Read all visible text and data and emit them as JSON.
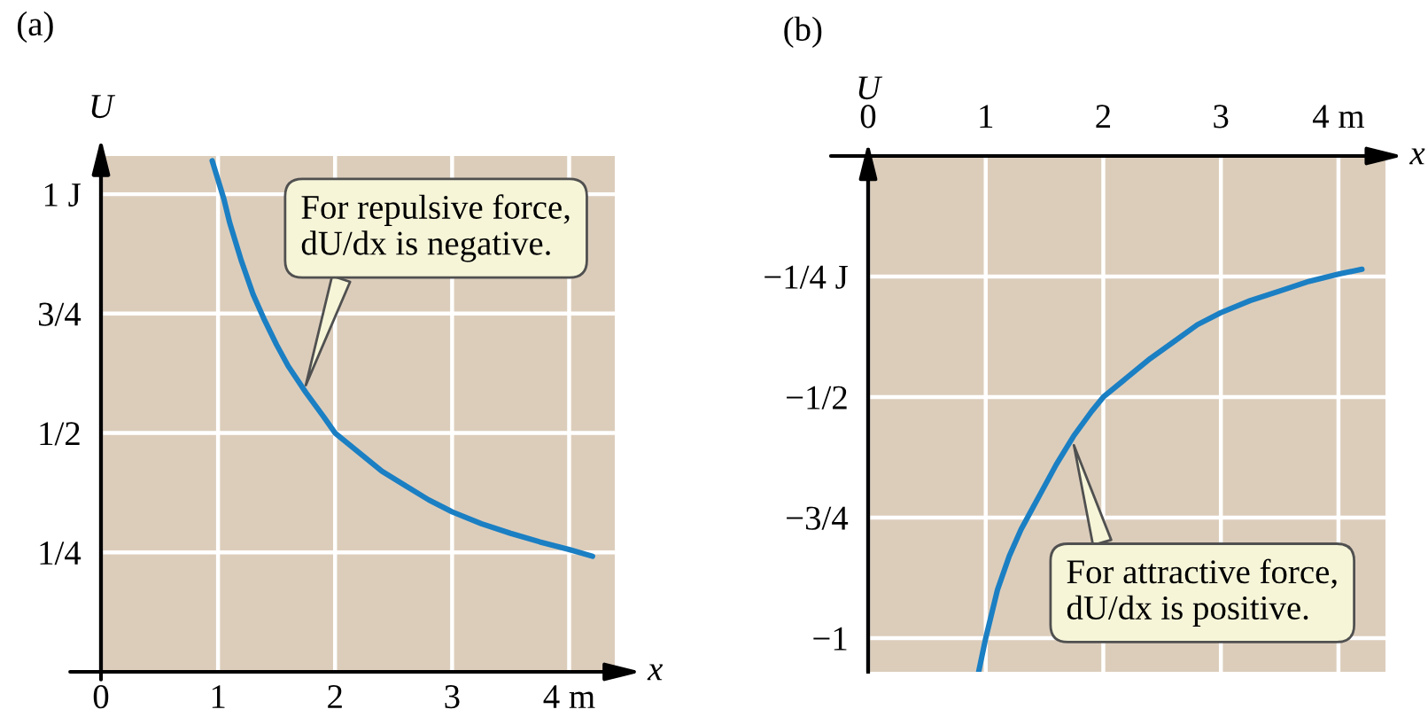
{
  "chart_data": [
    {
      "type": "line",
      "title": "(a)",
      "xlabel": "x",
      "ylabel": "U",
      "x": [
        0.95,
        1.0,
        1.05,
        1.1,
        1.2,
        1.3,
        1.4,
        1.5,
        1.6,
        1.75,
        1.9,
        2.0,
        2.2,
        2.4,
        2.6,
        2.8,
        3.0,
        3.25,
        3.5,
        3.75,
        4.0,
        4.2
      ],
      "series": [
        {
          "color": "#1b7fc3",
          "values": [
            1.07,
            1.03,
            0.99,
            0.94,
            0.86,
            0.79,
            0.735,
            0.685,
            0.64,
            0.585,
            0.535,
            0.5,
            0.46,
            0.42,
            0.39,
            0.36,
            0.335,
            0.31,
            0.29,
            0.272,
            0.256,
            0.242
          ]
        }
      ],
      "xlim": [
        0,
        4.39
      ],
      "ylim": [
        0,
        1.08
      ],
      "xticks": [
        0,
        1,
        2,
        3,
        {
          "value": 4,
          "label": "4 m"
        }
      ],
      "yticks": [
        {
          "value": 0.25,
          "label": "1/4"
        },
        {
          "value": 0.5,
          "label": "1/2"
        },
        {
          "value": 0.75,
          "label": "3/4"
        },
        {
          "value": 1,
          "label": "1 J"
        }
      ],
      "grid": true,
      "annotations": [
        {
          "text": "For repulsive force,\ndU/dx is negative.",
          "x": 1.75,
          "y": 0.6
        }
      ]
    },
    {
      "type": "line",
      "title": "(b)",
      "xlabel": "x",
      "ylabel": "U",
      "x": [
        0.94,
        1.0,
        1.05,
        1.1,
        1.2,
        1.3,
        1.4,
        1.5,
        1.6,
        1.75,
        1.9,
        2.0,
        2.2,
        2.4,
        2.6,
        2.8,
        3.0,
        3.25,
        3.5,
        3.75,
        4.0,
        4.2
      ],
      "series": [
        {
          "color": "#1b7fc3",
          "values": [
            -1.07,
            -1.0,
            -0.95,
            -0.9,
            -0.83,
            -0.775,
            -0.73,
            -0.685,
            -0.64,
            -0.58,
            -0.53,
            -0.5,
            -0.46,
            -0.42,
            -0.385,
            -0.35,
            -0.325,
            -0.3,
            -0.28,
            -0.26,
            -0.245,
            -0.235
          ]
        }
      ],
      "xlim": [
        0,
        4.4
      ],
      "ylim": [
        -1.07,
        0
      ],
      "xticks": [
        0,
        1,
        2,
        3,
        {
          "value": 4,
          "label": "4 m"
        }
      ],
      "yticks": [
        {
          "value": -1,
          "label": "−1"
        },
        {
          "value": -0.75,
          "label": "−3/4"
        },
        {
          "value": -0.5,
          "label": "−1/2"
        },
        {
          "value": -0.25,
          "label": "−1/4 J"
        }
      ],
      "grid": true,
      "annotations": [
        {
          "text": "For attractive force,\ndU/dx is positive.",
          "x": 1.75,
          "y": -0.6
        }
      ]
    }
  ]
}
